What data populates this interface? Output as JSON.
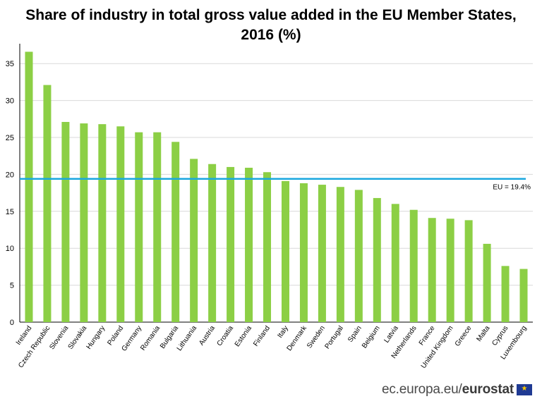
{
  "chart_data": {
    "type": "bar",
    "title_line1": "Share of industry in total gross value added in the EU Member States,",
    "title_line2": "2016 (%)",
    "categories": [
      "Ireland",
      "Czech Republic",
      "Slovenia",
      "Slovakia",
      "Hungary",
      "Poland",
      "Germany",
      "Romania",
      "Bulgaria",
      "Lithuania",
      "Austria",
      "Croatia",
      "Estonia",
      "Finland",
      "Italy",
      "Denmark",
      "Sweden",
      "Portugal",
      "Spain",
      "Belgium",
      "Latvia",
      "Netherlands",
      "France",
      "United Kingdom",
      "Greece",
      "Malta",
      "Cyprus",
      "Luxembourg"
    ],
    "values": [
      36.6,
      32.1,
      27.1,
      26.9,
      26.8,
      26.5,
      25.7,
      25.7,
      24.4,
      22.1,
      21.4,
      21.0,
      20.9,
      20.3,
      19.1,
      18.8,
      18.6,
      18.3,
      17.9,
      16.8,
      16.0,
      15.2,
      14.1,
      14.0,
      13.8,
      10.6,
      7.6,
      7.2
    ],
    "ylim": [
      0,
      35
    ],
    "yticks": [
      "0",
      "5",
      "10",
      "15",
      "20",
      "25",
      "30",
      "35"
    ],
    "grid": true,
    "bar_color": "#8ccf45",
    "reference_line": {
      "value": 19.4,
      "label": "EU = 19.4%",
      "color": "#1aa7df"
    }
  },
  "footer": {
    "source_prefix": "ec.europa.eu/",
    "source_brand": "eurostat"
  }
}
